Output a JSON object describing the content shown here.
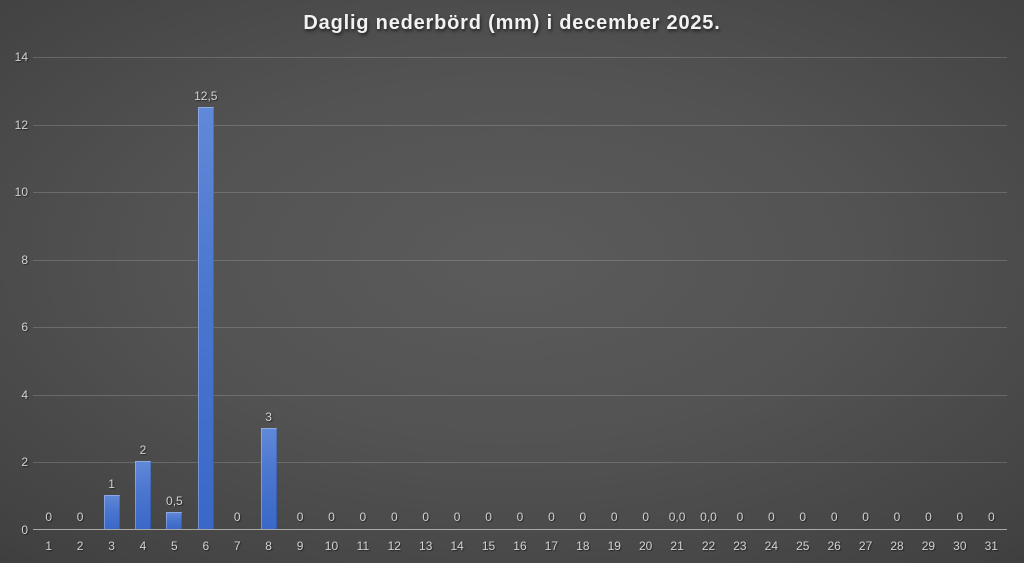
{
  "chart_data": {
    "type": "bar",
    "title": "Daglig nederbörd (mm) i december 2025.",
    "xlabel": "",
    "ylabel": "",
    "categories": [
      "1",
      "2",
      "3",
      "4",
      "5",
      "6",
      "7",
      "8",
      "9",
      "10",
      "11",
      "12",
      "13",
      "14",
      "15",
      "16",
      "17",
      "18",
      "19",
      "20",
      "21",
      "22",
      "23",
      "24",
      "25",
      "26",
      "27",
      "28",
      "29",
      "30",
      "31"
    ],
    "values": [
      0,
      0,
      1,
      2,
      0.5,
      12.5,
      0,
      3,
      0,
      0,
      0,
      0,
      0,
      0,
      0,
      0,
      0,
      0,
      0,
      0,
      0,
      0,
      0,
      0,
      0,
      0,
      0,
      0,
      0,
      0,
      0
    ],
    "value_labels": [
      "0",
      "0",
      "1",
      "2",
      "0,5",
      "12,5",
      "0",
      "3",
      "0",
      "0",
      "0",
      "0",
      "0",
      "0",
      "0",
      "0",
      "0",
      "0",
      "0",
      "0",
      "0,0",
      "0,0",
      "0",
      "0",
      "0",
      "0",
      "0",
      "0",
      "0",
      "0",
      "0"
    ],
    "ylim": [
      0,
      14
    ],
    "y_ticks": [
      0,
      2,
      4,
      6,
      8,
      10,
      12,
      14
    ],
    "grid": true,
    "legend": "none",
    "colors": {
      "bar_top": "#6189d9",
      "bar_bottom": "#3a68c8",
      "background_center": "#5b5b5b",
      "background_edge": "#242424",
      "label": "#d2d2d2",
      "title": "#f2f2f2",
      "axis_line": "#a9a9a9",
      "gridline": "#6e6e6e"
    }
  }
}
